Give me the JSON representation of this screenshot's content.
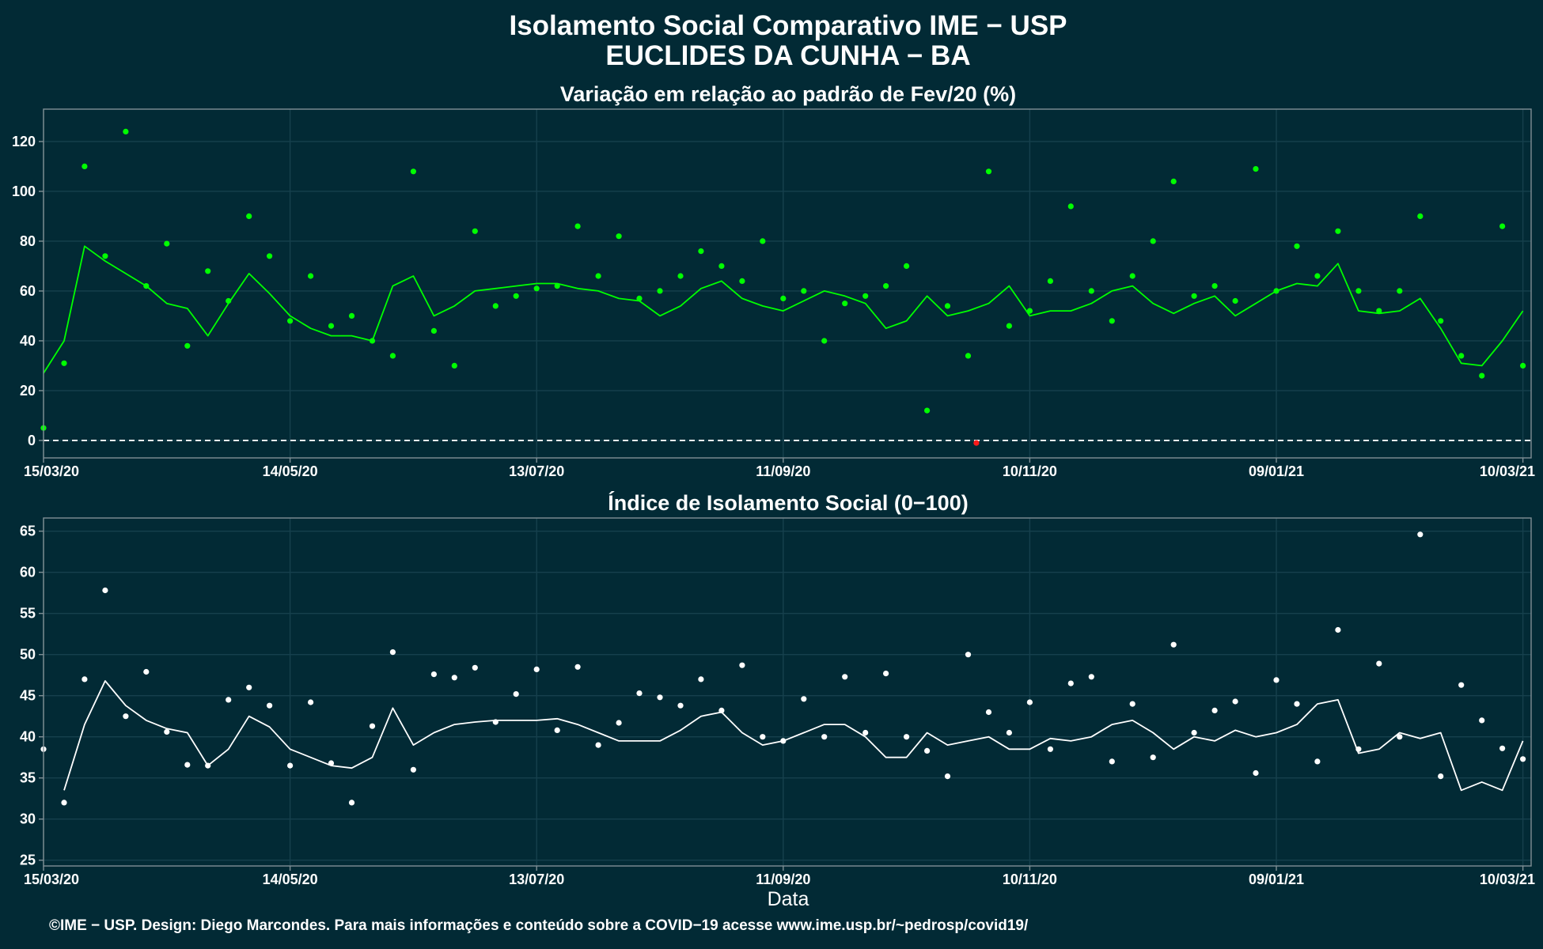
{
  "colors": {
    "background": "#022a35",
    "grid": "#16404d",
    "panel_border": "#7f8f95",
    "series1": "#00ff00",
    "negative_point": "#ff1a1a",
    "series2": "#ffffff",
    "reference_line": "#ffffff"
  },
  "header": {
    "title_line1": "Isolamento Social Comparativo IME − USP",
    "title_line2": "EUCLIDES DA CUNHA − BA"
  },
  "caption": "©IME − USP. Design: Diego Marcondes. Para mais informações e conteúdo sobre a COVID−19 acesse www.ime.usp.br/~pedrosp/covid19/",
  "chart_data": [
    {
      "type": "scatter",
      "title": "Variação em relação ao padrão de Fev/20 (%)",
      "xlabel": "",
      "ylabel": "",
      "x_range": [
        "2020-03-15",
        "2021-03-12"
      ],
      "x_ticks": [
        "15/03/20",
        "14/05/20",
        "13/07/20",
        "11/09/20",
        "10/11/20",
        "09/01/21",
        "10/03/21"
      ],
      "ylim": [
        -7,
        133
      ],
      "y_ticks": [
        0,
        20,
        40,
        60,
        80,
        100,
        120
      ],
      "reference_line_y": 0,
      "grid": true,
      "series": [
        {
          "kind": "points",
          "values_step": 5,
          "x": [
            "2020-03-15",
            "2020-03-20",
            "2020-03-25",
            "2020-03-30",
            "2020-04-04",
            "2020-04-09",
            "2020-04-14",
            "2020-04-19",
            "2020-04-24",
            "2020-04-29",
            "2020-05-04",
            "2020-05-09",
            "2020-05-14",
            "2020-05-19",
            "2020-05-24",
            "2020-05-29",
            "2020-06-03",
            "2020-06-08",
            "2020-06-13",
            "2020-06-18",
            "2020-06-23",
            "2020-06-28",
            "2020-07-03",
            "2020-07-08",
            "2020-07-13",
            "2020-07-18",
            "2020-07-23",
            "2020-07-28",
            "2020-08-02",
            "2020-08-07",
            "2020-08-12",
            "2020-08-17",
            "2020-08-22",
            "2020-08-27",
            "2020-09-01",
            "2020-09-06",
            "2020-09-11",
            "2020-09-16",
            "2020-09-21",
            "2020-09-26",
            "2020-10-01",
            "2020-10-06",
            "2020-10-11",
            "2020-10-16",
            "2020-10-21",
            "2020-10-26",
            "2020-10-31",
            "2020-11-05",
            "2020-11-10",
            "2020-11-15",
            "2020-11-20",
            "2020-11-25",
            "2020-11-30",
            "2020-12-05",
            "2020-12-10",
            "2020-12-15",
            "2020-12-20",
            "2020-12-25",
            "2020-12-30",
            "2021-01-04",
            "2021-01-09",
            "2021-01-14",
            "2021-01-19",
            "2021-01-24",
            "2021-01-29",
            "2021-02-03",
            "2021-02-08",
            "2021-02-13",
            "2021-02-18",
            "2021-02-23",
            "2021-02-28",
            "2021-03-05",
            "2021-03-10"
          ],
          "y": [
            5,
            31,
            110,
            74,
            124,
            62,
            79,
            38,
            68,
            56,
            90,
            74,
            48,
            66,
            46,
            50,
            40,
            34,
            108,
            44,
            30,
            84,
            54,
            58,
            61,
            62,
            86,
            66,
            82,
            57,
            60,
            66,
            76,
            70,
            64,
            80,
            57,
            60,
            40,
            55,
            58,
            62,
            70,
            12,
            54,
            34,
            108,
            46,
            52,
            64,
            94,
            60,
            48,
            66,
            80,
            104,
            58,
            62,
            56,
            109,
            60,
            78,
            66,
            84,
            60,
            52,
            60,
            90,
            48,
            34,
            26,
            86,
            30
          ]
        },
        {
          "kind": "moving-average-line",
          "values_step": 5,
          "x": [
            "2020-03-15",
            "2020-03-20",
            "2020-03-25",
            "2020-03-30",
            "2020-04-04",
            "2020-04-09",
            "2020-04-14",
            "2020-04-19",
            "2020-04-24",
            "2020-04-29",
            "2020-05-04",
            "2020-05-09",
            "2020-05-14",
            "2020-05-19",
            "2020-05-24",
            "2020-05-29",
            "2020-06-03",
            "2020-06-08",
            "2020-06-13",
            "2020-06-18",
            "2020-06-23",
            "2020-06-28",
            "2020-07-03",
            "2020-07-08",
            "2020-07-13",
            "2020-07-18",
            "2020-07-23",
            "2020-07-28",
            "2020-08-02",
            "2020-08-07",
            "2020-08-12",
            "2020-08-17",
            "2020-08-22",
            "2020-08-27",
            "2020-09-01",
            "2020-09-06",
            "2020-09-11",
            "2020-09-16",
            "2020-09-21",
            "2020-09-26",
            "2020-10-01",
            "2020-10-06",
            "2020-10-11",
            "2020-10-16",
            "2020-10-21",
            "2020-10-26",
            "2020-10-31",
            "2020-11-05",
            "2020-11-10",
            "2020-11-15",
            "2020-11-20",
            "2020-11-25",
            "2020-11-30",
            "2020-12-05",
            "2020-12-10",
            "2020-12-15",
            "2020-12-20",
            "2020-12-25",
            "2020-12-30",
            "2021-01-04",
            "2021-01-09",
            "2021-01-14",
            "2021-01-19",
            "2021-01-24",
            "2021-01-29",
            "2021-02-03",
            "2021-02-08",
            "2021-02-13",
            "2021-02-18",
            "2021-02-23",
            "2021-02-28",
            "2021-03-05",
            "2021-03-10"
          ],
          "y": [
            27,
            40,
            78,
            72,
            67,
            62,
            55,
            53,
            42,
            55,
            67,
            59,
            50,
            45,
            42,
            42,
            40,
            62,
            66,
            50,
            54,
            60,
            61,
            62,
            63,
            63,
            61,
            60,
            57,
            56,
            50,
            54,
            61,
            64,
            57,
            54,
            52,
            56,
            60,
            58,
            55,
            45,
            48,
            58,
            50,
            52,
            55,
            62,
            50,
            52,
            52,
            55,
            60,
            62,
            55,
            51,
            55,
            58,
            50,
            55,
            60,
            63,
            62,
            71,
            52,
            51,
            52,
            57,
            45,
            31,
            30,
            40,
            52
          ]
        },
        {
          "kind": "negative-point",
          "x": [
            "2020-10-28"
          ],
          "y": [
            -1
          ]
        }
      ]
    },
    {
      "type": "scatter",
      "title": "Índice de Isolamento Social (0−100)",
      "xlabel": "Data",
      "ylabel": "",
      "x_range": [
        "2020-03-15",
        "2021-03-12"
      ],
      "x_ticks": [
        "15/03/20",
        "14/05/20",
        "13/07/20",
        "11/09/20",
        "10/11/20",
        "09/01/21",
        "10/03/21"
      ],
      "ylim": [
        24.3,
        66.6
      ],
      "y_ticks": [
        25,
        30,
        35,
        40,
        45,
        50,
        55,
        60,
        65
      ],
      "grid": true,
      "series": [
        {
          "kind": "points",
          "values_step": 5,
          "x": [
            "2020-03-15",
            "2020-03-20",
            "2020-03-25",
            "2020-03-30",
            "2020-04-04",
            "2020-04-09",
            "2020-04-14",
            "2020-04-19",
            "2020-04-24",
            "2020-04-29",
            "2020-05-04",
            "2020-05-09",
            "2020-05-14",
            "2020-05-19",
            "2020-05-24",
            "2020-05-29",
            "2020-06-03",
            "2020-06-08",
            "2020-06-13",
            "2020-06-18",
            "2020-06-23",
            "2020-06-28",
            "2020-07-03",
            "2020-07-08",
            "2020-07-13",
            "2020-07-18",
            "2020-07-23",
            "2020-07-28",
            "2020-08-02",
            "2020-08-07",
            "2020-08-12",
            "2020-08-17",
            "2020-08-22",
            "2020-08-27",
            "2020-09-01",
            "2020-09-06",
            "2020-09-11",
            "2020-09-16",
            "2020-09-21",
            "2020-09-26",
            "2020-10-01",
            "2020-10-06",
            "2020-10-11",
            "2020-10-16",
            "2020-10-21",
            "2020-10-26",
            "2020-10-31",
            "2020-11-05",
            "2020-11-10",
            "2020-11-15",
            "2020-11-20",
            "2020-11-25",
            "2020-11-30",
            "2020-12-05",
            "2020-12-10",
            "2020-12-15",
            "2020-12-20",
            "2020-12-25",
            "2020-12-30",
            "2021-01-04",
            "2021-01-09",
            "2021-01-14",
            "2021-01-19",
            "2021-01-24",
            "2021-01-29",
            "2021-02-03",
            "2021-02-08",
            "2021-02-13",
            "2021-02-18",
            "2021-02-23",
            "2021-02-28",
            "2021-03-05",
            "2021-03-10"
          ],
          "y": [
            38.5,
            32,
            47,
            57.8,
            42.5,
            47.9,
            40.6,
            36.6,
            36.5,
            44.5,
            46,
            43.8,
            36.5,
            44.2,
            36.8,
            32,
            41.3,
            50.3,
            36,
            47.6,
            47.2,
            48.4,
            41.8,
            45.2,
            48.2,
            40.8,
            48.5,
            39,
            41.7,
            45.3,
            44.8,
            43.8,
            47,
            43.2,
            48.7,
            40,
            39.5,
            44.6,
            40,
            47.3,
            40.5,
            47.7,
            40,
            38.3,
            35.2,
            50,
            43,
            40.5,
            44.2,
            38.5,
            46.5,
            47.3,
            37,
            44,
            37.5,
            51.2,
            40.5,
            43.2,
            44.3,
            35.6,
            46.9,
            44,
            37,
            53,
            38.5,
            48.9,
            40,
            64.6,
            35.2,
            46.3,
            42,
            38.6,
            37.3
          ]
        },
        {
          "kind": "moving-average-line",
          "values_step": 5,
          "x": [
            "2020-03-20",
            "2020-03-25",
            "2020-03-30",
            "2020-04-04",
            "2020-04-09",
            "2020-04-14",
            "2020-04-19",
            "2020-04-24",
            "2020-04-29",
            "2020-05-04",
            "2020-05-09",
            "2020-05-14",
            "2020-05-19",
            "2020-05-24",
            "2020-05-29",
            "2020-06-03",
            "2020-06-08",
            "2020-06-13",
            "2020-06-18",
            "2020-06-23",
            "2020-06-28",
            "2020-07-03",
            "2020-07-08",
            "2020-07-13",
            "2020-07-18",
            "2020-07-23",
            "2020-07-28",
            "2020-08-02",
            "2020-08-07",
            "2020-08-12",
            "2020-08-17",
            "2020-08-22",
            "2020-08-27",
            "2020-09-01",
            "2020-09-06",
            "2020-09-11",
            "2020-09-16",
            "2020-09-21",
            "2020-09-26",
            "2020-10-01",
            "2020-10-06",
            "2020-10-11",
            "2020-10-16",
            "2020-10-21",
            "2020-10-26",
            "2020-10-31",
            "2020-11-05",
            "2020-11-10",
            "2020-11-15",
            "2020-11-20",
            "2020-11-25",
            "2020-11-30",
            "2020-12-05",
            "2020-12-10",
            "2020-12-15",
            "2020-12-20",
            "2020-12-25",
            "2020-12-30",
            "2021-01-04",
            "2021-01-09",
            "2021-01-14",
            "2021-01-19",
            "2021-01-24",
            "2021-01-29",
            "2021-02-03",
            "2021-02-08",
            "2021-02-13",
            "2021-02-18",
            "2021-02-23",
            "2021-02-28",
            "2021-03-05",
            "2021-03-10"
          ],
          "y": [
            33.5,
            41.5,
            46.8,
            43.8,
            42,
            41,
            40.5,
            36.5,
            38.5,
            42.5,
            41.2,
            38.5,
            37.5,
            36.5,
            36.2,
            37.5,
            43.5,
            39,
            40.5,
            41.5,
            41.8,
            42,
            42,
            42,
            42.2,
            41.5,
            40.5,
            39.5,
            39.5,
            39.5,
            40.8,
            42.5,
            43,
            40.5,
            39,
            39.5,
            40.5,
            41.5,
            41.5,
            40,
            37.5,
            37.5,
            40.5,
            39,
            39.5,
            40,
            38.5,
            38.5,
            39.8,
            39.5,
            40,
            41.5,
            42,
            40.5,
            38.5,
            40,
            39.5,
            40.8,
            40,
            40.5,
            41.5,
            44,
            44.5,
            38,
            38.5,
            40.5,
            39.8,
            40.5,
            33.5,
            34.5,
            33.5,
            39.5
          ]
        }
      ]
    }
  ]
}
